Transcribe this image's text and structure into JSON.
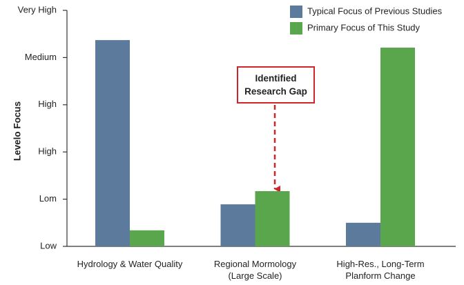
{
  "chart_data": {
    "type": "bar",
    "y_label": "Levelo Focus",
    "categories": [
      "Hydrology & Water Quality",
      "Regional Mormology\n(Large Scale)",
      "High-Res., Long-Term\nPlanform Change"
    ],
    "series": [
      {
        "name": "Typical Focus of Previous Studies",
        "color": "#5b7a9c",
        "values": [
          4.37,
          0.89,
          0.5
        ]
      },
      {
        "name": "Primary Focus of This Study",
        "color": "#5aa64c",
        "values": [
          0.34,
          1.17,
          4.21
        ]
      }
    ],
    "ylim": [
      0,
      5
    ],
    "yticks": [
      {
        "value": 0,
        "label": "Low"
      },
      {
        "value": 1,
        "label": "Lom"
      },
      {
        "value": 2,
        "label": "High"
      },
      {
        "value": 3,
        "label": "High"
      },
      {
        "value": 4,
        "label": "Medium"
      },
      {
        "value": 5,
        "label": "Very High"
      }
    ],
    "annotation": "Identified\nResearch Gap",
    "legend": "upper right"
  }
}
